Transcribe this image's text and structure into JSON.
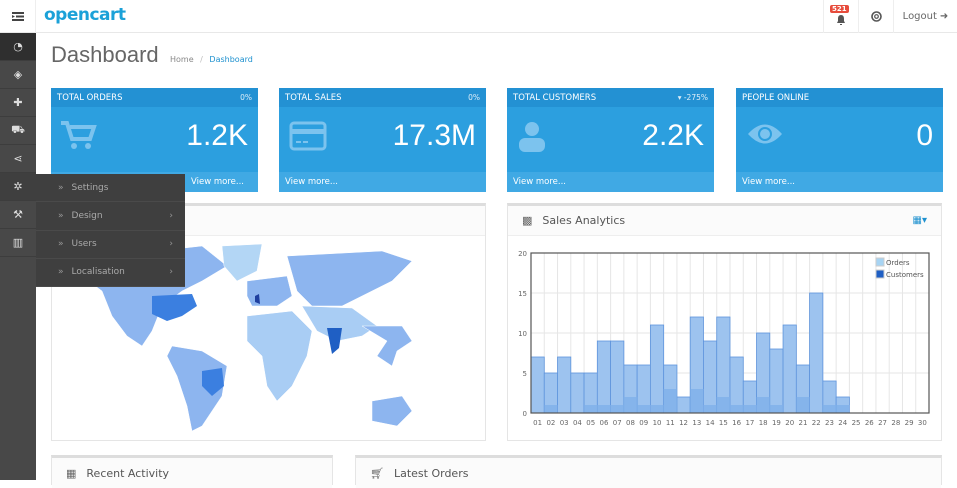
{
  "header": {
    "logo": "opencart",
    "notification_count": "521",
    "logout_label": "Logout"
  },
  "sidebar": {
    "icons": [
      "dashboard-icon",
      "tag-icon",
      "puzzle-icon",
      "cart-icon",
      "share-icon",
      "gear-icon",
      "wrench-icon",
      "bar-chart-icon"
    ],
    "active": 0
  },
  "flyout": {
    "items": [
      {
        "label": "Settings",
        "has_sub": false
      },
      {
        "label": "Design",
        "has_sub": true
      },
      {
        "label": "Users",
        "has_sub": true
      },
      {
        "label": "Localisation",
        "has_sub": true
      }
    ]
  },
  "page": {
    "title": "Dashboard",
    "breadcrumb": [
      "Home",
      "Dashboard"
    ]
  },
  "tiles": [
    {
      "title": "TOTAL ORDERS",
      "pct": "0%",
      "value": "1.2K",
      "footer": "View more...",
      "icon": "cart-icon"
    },
    {
      "title": "TOTAL SALES",
      "pct": "0%",
      "value": "17.3M",
      "footer": "View more...",
      "icon": "credit-card-icon"
    },
    {
      "title": "TOTAL CUSTOMERS",
      "pct": "▾ -275%",
      "value": "2.2K",
      "footer": "View more...",
      "icon": "user-icon"
    },
    {
      "title": "PEOPLE ONLINE",
      "pct": "",
      "value": "0",
      "footer": "View more...",
      "icon": "eye-icon"
    }
  ],
  "sales_panel": {
    "title": "Sales Analytics"
  },
  "bottom": {
    "recent_activity": "Recent Activity",
    "latest_orders": "Latest Orders"
  },
  "colors": {
    "tile": "#2c9fdf",
    "orders": "#9dc3ef",
    "customers": "#1f5fc4",
    "map_base": "#8db5ef",
    "map_dark": "#1f5fc4"
  },
  "chart_data": {
    "type": "bar",
    "categories": [
      "01",
      "02",
      "03",
      "04",
      "05",
      "06",
      "07",
      "08",
      "09",
      "10",
      "11",
      "12",
      "13",
      "14",
      "15",
      "16",
      "17",
      "18",
      "19",
      "20",
      "21",
      "22",
      "23",
      "24",
      "25",
      "26",
      "27",
      "28",
      "29",
      "30"
    ],
    "series": [
      {
        "name": "Orders",
        "values": [
          7,
          5,
          7,
          5,
          5,
          9,
          9,
          6,
          6,
          11,
          6,
          2,
          12,
          9,
          12,
          7,
          4,
          10,
          8,
          11,
          6,
          15,
          4,
          2,
          0,
          0,
          0,
          0,
          0,
          0
        ]
      },
      {
        "name": "Customers",
        "values": [
          0,
          1,
          0,
          0,
          1,
          1,
          1,
          2,
          1,
          1,
          3,
          0,
          3,
          1,
          2,
          1,
          1,
          2,
          1,
          0,
          2,
          0,
          1,
          1,
          0,
          0,
          0,
          0,
          0,
          0
        ]
      }
    ],
    "yticks": [
      0,
      5,
      10,
      15,
      20
    ],
    "ylim": [
      0,
      20
    ],
    "grid": true,
    "legend": "top-right"
  }
}
